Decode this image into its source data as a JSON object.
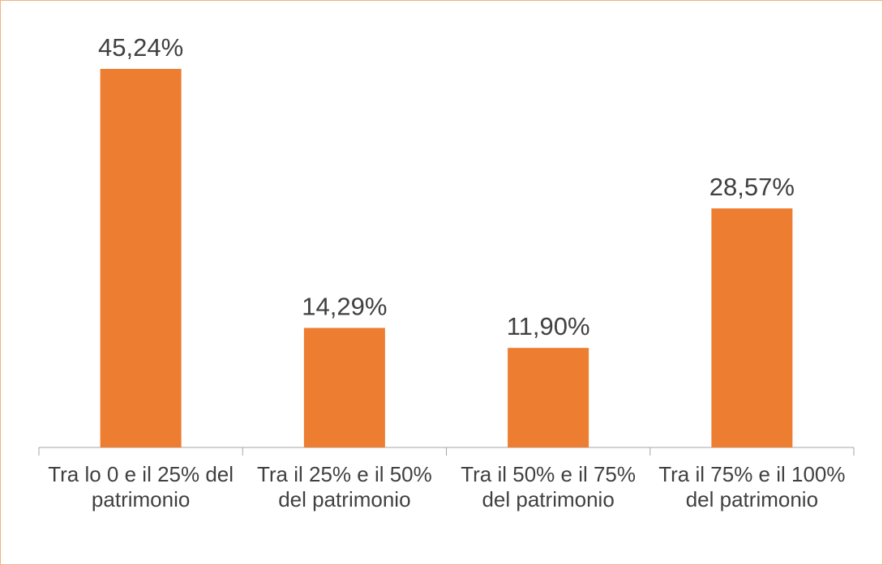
{
  "chart_data": {
    "type": "bar",
    "categories": [
      "Tra lo 0 e il 25% del patrimonio",
      "Tra il 25% e il 50% del patrimonio",
      "Tra il 50% e il 75% del patrimonio",
      "Tra il 75% e il 100% del patrimonio"
    ],
    "values": [
      45.24,
      14.29,
      11.9,
      28.57
    ],
    "value_labels": [
      "45,24%",
      "14,29%",
      "11,90%",
      "28,57%"
    ],
    "color": "#ed7d31"
  }
}
